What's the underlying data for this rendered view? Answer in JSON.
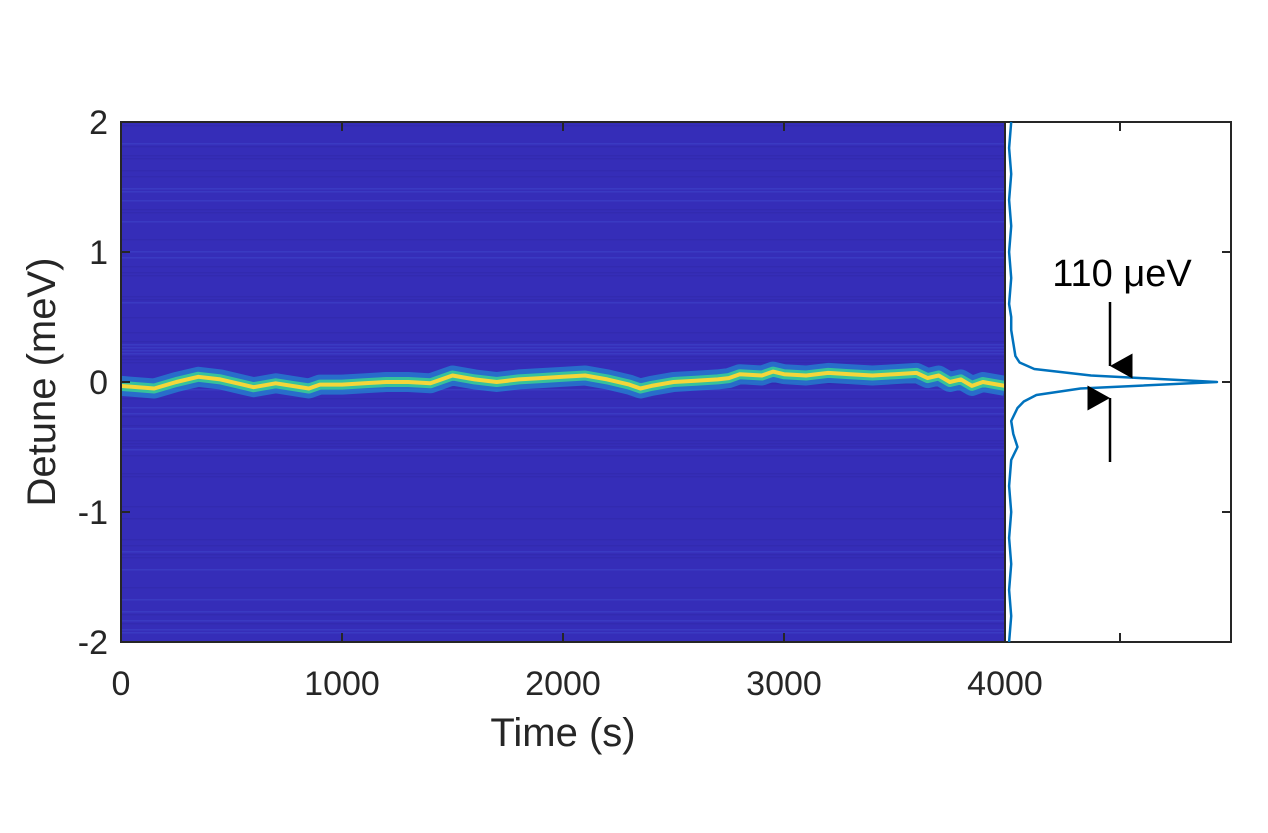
{
  "chart_data": [
    {
      "type": "heatmap",
      "xlabel": "Time (s)",
      "ylabel": "Detune (meV)",
      "xlim": [
        0,
        4000
      ],
      "ylim": [
        -2,
        2
      ],
      "x_ticks": [
        "0",
        "1000",
        "2000",
        "3000",
        "4000"
      ],
      "y_ticks": [
        "2",
        "1",
        "0",
        "-1",
        "-2"
      ],
      "colormap": "parula",
      "background_color": "#352DB8",
      "peak_color": "#F4D63A",
      "peak_center_trace": {
        "time": [
          0,
          150,
          250,
          350,
          450,
          550,
          600,
          700,
          850,
          900,
          1000,
          1100,
          1200,
          1300,
          1400,
          1500,
          1600,
          1700,
          1800,
          1900,
          2000,
          2100,
          2200,
          2300,
          2350,
          2400,
          2500,
          2600,
          2700,
          2750,
          2800,
          2900,
          2950,
          3000,
          3100,
          3200,
          3300,
          3400,
          3500,
          3600,
          3650,
          3700,
          3750,
          3800,
          3850,
          3900,
          4000
        ],
        "detune": [
          -0.03,
          -0.05,
          0.0,
          0.04,
          0.02,
          -0.02,
          -0.04,
          -0.01,
          -0.05,
          -0.02,
          -0.02,
          -0.01,
          0.0,
          0.0,
          -0.01,
          0.05,
          0.02,
          0.0,
          0.02,
          0.03,
          0.04,
          0.05,
          0.02,
          -0.02,
          -0.05,
          -0.03,
          0.0,
          0.01,
          0.02,
          0.03,
          0.06,
          0.05,
          0.08,
          0.06,
          0.05,
          0.07,
          0.06,
          0.05,
          0.06,
          0.07,
          0.03,
          0.05,
          0.0,
          0.02,
          -0.03,
          0.0,
          -0.03
        ]
      }
    },
    {
      "type": "line",
      "xlim": [
        0,
        1
      ],
      "ylim": [
        -2,
        2
      ],
      "line_color": "#0072BD",
      "profile": {
        "detune": [
          -2.0,
          -1.8,
          -1.6,
          -1.4,
          -1.2,
          -1.0,
          -0.8,
          -0.6,
          -0.5,
          -0.4,
          -0.3,
          -0.2,
          -0.15,
          -0.1,
          -0.05,
          0.0,
          0.05,
          0.1,
          0.15,
          0.2,
          0.3,
          0.4,
          0.5,
          0.6,
          0.8,
          1.0,
          1.2,
          1.4,
          1.6,
          1.8,
          2.0
        ],
        "intensity": [
          0.01,
          0.02,
          0.01,
          0.02,
          0.01,
          0.02,
          0.01,
          0.02,
          0.05,
          0.03,
          0.02,
          0.05,
          0.08,
          0.14,
          0.35,
          1.0,
          0.4,
          0.13,
          0.06,
          0.04,
          0.03,
          0.02,
          0.02,
          0.01,
          0.02,
          0.01,
          0.02,
          0.01,
          0.02,
          0.01,
          0.02
        ]
      },
      "annotation": "110 μeV"
    }
  ]
}
